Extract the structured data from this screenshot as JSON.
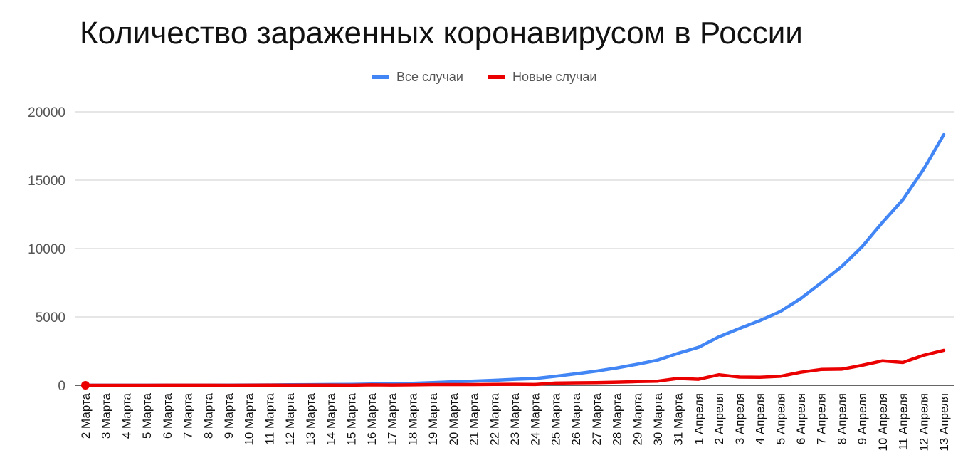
{
  "chart_data": {
    "type": "line",
    "title": "Количество зараженных коронавирусом в России",
    "xlabel": "",
    "ylabel": "",
    "ylim": [
      0,
      20000
    ],
    "yticks": [
      0,
      5000,
      10000,
      15000,
      20000
    ],
    "grid": true,
    "legend": "top-center",
    "x": [
      "2 Марта",
      "3 Марта",
      "4 Марта",
      "5 Марта",
      "6 Марта",
      "7 Марта",
      "8 Марта",
      "9 Марта",
      "10 Марта",
      "11 Марта",
      "12 Марта",
      "13 Марта",
      "14 Марта",
      "15 Марта",
      "16 Марта",
      "17 Марта",
      "18 Марта",
      "19 Марта",
      "20 Марта",
      "21 Марта",
      "22 Марта",
      "23 Марта",
      "24 Марта",
      "25 Марта",
      "26 Марта",
      "27 Марта",
      "28 Марта",
      "29 Марта",
      "30 Марта",
      "31 Марта",
      "1 Апреля",
      "2 Апреля",
      "3 Апреля",
      "4 Апреля",
      "5 Апреля",
      "6 Апреля",
      "7 Апреля",
      "8 Апреля",
      "9 Апреля",
      "10 Апреля",
      "11 Апреля",
      "12 Апреля",
      "13 Апреля"
    ],
    "series": [
      {
        "name": "Все случаи",
        "color": "#4285f4",
        "values": [
          3,
          3,
          3,
          4,
          10,
          14,
          17,
          17,
          20,
          28,
          34,
          45,
          59,
          63,
          93,
          114,
          147,
          199,
          253,
          306,
          367,
          438,
          495,
          658,
          840,
          1036,
          1264,
          1534,
          1836,
          2337,
          2777,
          3548,
          4149,
          4731,
          5389,
          6343,
          7497,
          8672,
          10131,
          11917,
          13584,
          15770,
          18328
        ]
      },
      {
        "name": "Новые случаи",
        "color": "#ea0000",
        "values": [
          0,
          0,
          0,
          1,
          6,
          4,
          3,
          0,
          3,
          8,
          6,
          11,
          14,
          4,
          30,
          21,
          33,
          52,
          54,
          53,
          61,
          71,
          57,
          163,
          182,
          196,
          228,
          270,
          302,
          501,
          440,
          771,
          601,
          582,
          658,
          954,
          1154,
          1175,
          1459,
          1786,
          1667,
          2186,
          2558
        ]
      }
    ]
  }
}
